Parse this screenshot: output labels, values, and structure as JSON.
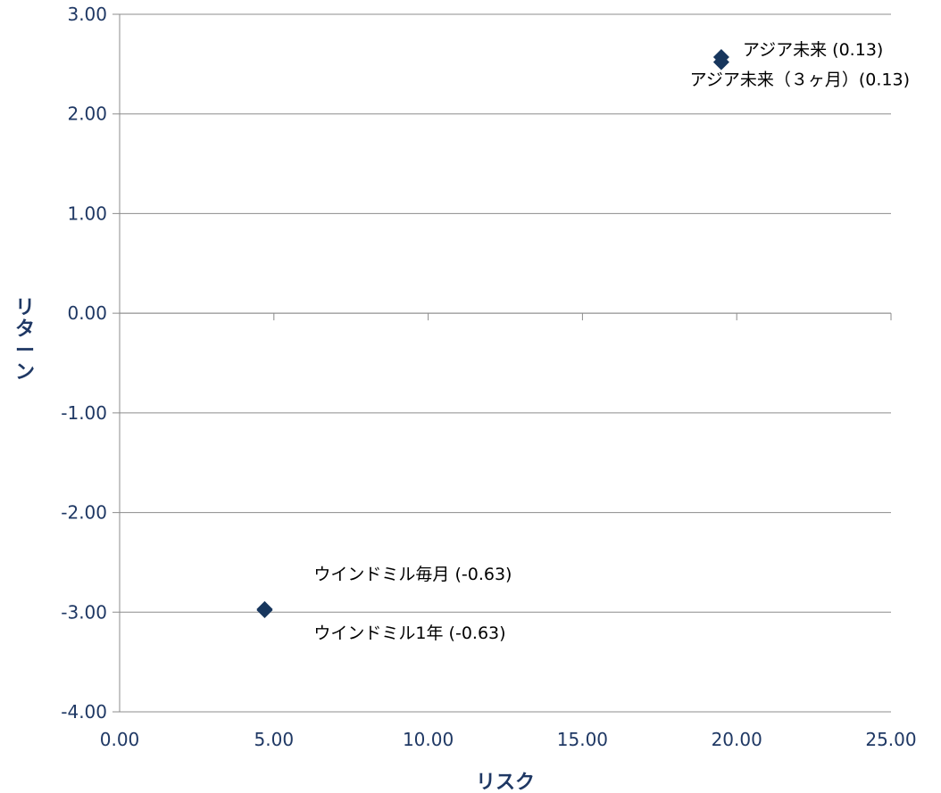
{
  "chart_data": {
    "type": "scatter",
    "xlabel": "リスク",
    "ylabel": "リターン",
    "xlim": [
      0,
      25
    ],
    "ylim": [
      -4,
      3
    ],
    "x_ticks": [
      "0.00",
      "5.00",
      "10.00",
      "15.00",
      "20.00",
      "25.00"
    ],
    "y_ticks": [
      "3.00",
      "2.00",
      "1.00",
      "0.00",
      "-1.00",
      "-2.00",
      "-3.00",
      "-4.00"
    ],
    "grid": "horizontal",
    "marker": "diamond",
    "color": "#17365d",
    "points": [
      {
        "x": 19.5,
        "y": 2.57,
        "label": "アジア未来 (0.13)",
        "label_pos": "right"
      },
      {
        "x": 19.5,
        "y": 2.52,
        "label": "アジア未来（３ヶ月）(0.13)",
        "label_pos": "below-left"
      },
      {
        "x": 4.7,
        "y": -2.97,
        "label": "ウインドミル毎月 (-0.63)",
        "label_pos": "above-right"
      },
      {
        "x": 4.7,
        "y": -2.98,
        "label": "ウインドミル1年 (-0.63)",
        "label_pos": "below-right"
      }
    ]
  }
}
